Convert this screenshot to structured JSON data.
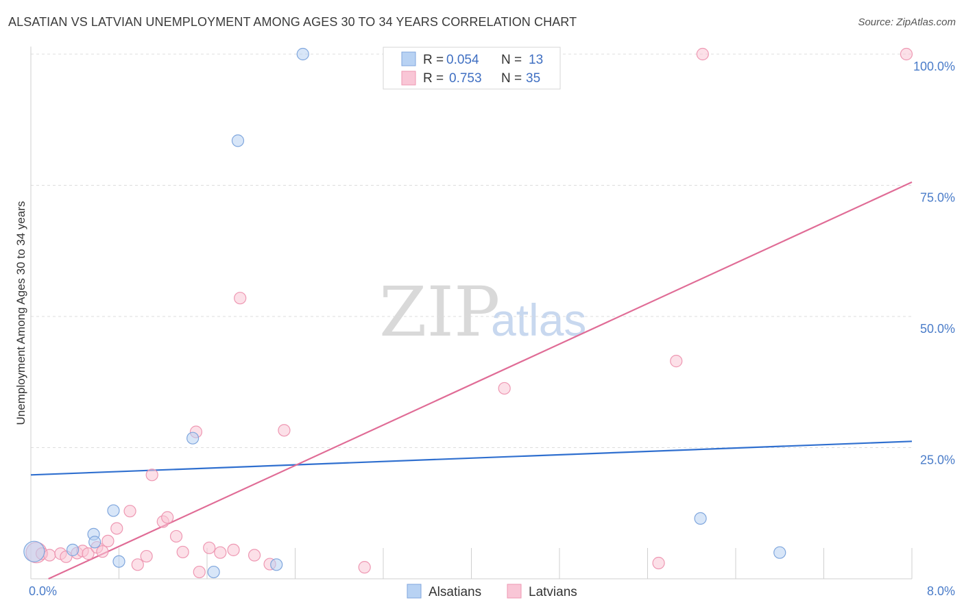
{
  "title": "ALSATIAN VS LATVIAN UNEMPLOYMENT AMONG AGES 30 TO 34 YEARS CORRELATION CHART",
  "source": "Source: ZipAtlas.com",
  "watermark": {
    "part1": "ZIP",
    "part2": "atlas"
  },
  "legend_top": [
    {
      "r_label": "R =",
      "r_value": "0.054",
      "n_label": "N =",
      "n_value": "13",
      "color": "#b8d2f3",
      "stroke": "#7fa6dd"
    },
    {
      "r_label": "R =",
      "r_value": "0.753",
      "n_label": "N =",
      "n_value": "35",
      "color": "#f9c6d6",
      "stroke": "#ee97b2"
    }
  ],
  "legend_bottom": [
    {
      "label": "Alsatians",
      "color": "#b8d2f3",
      "stroke": "#7fa6dd"
    },
    {
      "label": "Latvians",
      "color": "#f9c6d6",
      "stroke": "#ee97b2"
    }
  ],
  "chart_data": {
    "type": "scatter",
    "xlabel": "",
    "ylabel": "Unemployment Among Ages 30 to 34 years",
    "xlim": [
      0,
      8
    ],
    "ylim": [
      0,
      100
    ],
    "x_tick_labels": [
      {
        "value": 0,
        "label": "0.0%"
      },
      {
        "value": 8,
        "label": "8.0%"
      }
    ],
    "y_tick_labels": [
      {
        "value": 100,
        "label": "100.0%"
      },
      {
        "value": 75,
        "label": "75.0%"
      },
      {
        "value": 50,
        "label": "50.0%"
      },
      {
        "value": 25,
        "label": "25.0%"
      }
    ],
    "series": [
      {
        "name": "Alsatians",
        "color": "#b8d2f3",
        "stroke": "#7fa6dd",
        "line_color": "#2f6fcf",
        "trend": {
          "x": [
            0,
            8
          ],
          "y": [
            19.8,
            26.2
          ]
        },
        "points": [
          {
            "x": 0.03,
            "y": 5.2,
            "big": true
          },
          {
            "x": 0.38,
            "y": 5.5
          },
          {
            "x": 0.57,
            "y": 8.5
          },
          {
            "x": 0.75,
            "y": 13.0
          },
          {
            "x": 0.58,
            "y": 7.0
          },
          {
            "x": 0.8,
            "y": 3.3
          },
          {
            "x": 1.47,
            "y": 26.8
          },
          {
            "x": 1.66,
            "y": 1.3
          },
          {
            "x": 1.88,
            "y": 83.5
          },
          {
            "x": 2.23,
            "y": 2.7
          },
          {
            "x": 2.47,
            "y": 100.0
          },
          {
            "x": 6.08,
            "y": 11.5
          },
          {
            "x": 6.8,
            "y": 5.0
          }
        ]
      },
      {
        "name": "Latvians",
        "color": "#f9c6d6",
        "stroke": "#ee97b2",
        "line_color": "#e06c96",
        "trend": {
          "x": [
            0.16,
            8
          ],
          "y": [
            0.0,
            75.6
          ]
        },
        "points": [
          {
            "x": 0.05,
            "y": 5.0,
            "big": true
          },
          {
            "x": 0.1,
            "y": 4.8
          },
          {
            "x": 0.17,
            "y": 4.5
          },
          {
            "x": 0.27,
            "y": 4.8
          },
          {
            "x": 0.32,
            "y": 4.2
          },
          {
            "x": 0.42,
            "y": 4.9
          },
          {
            "x": 0.47,
            "y": 5.3
          },
          {
            "x": 0.52,
            "y": 4.8
          },
          {
            "x": 0.6,
            "y": 6.0
          },
          {
            "x": 0.65,
            "y": 5.2
          },
          {
            "x": 0.7,
            "y": 7.2
          },
          {
            "x": 0.78,
            "y": 9.6
          },
          {
            "x": 0.9,
            "y": 12.9
          },
          {
            "x": 0.97,
            "y": 2.7
          },
          {
            "x": 1.05,
            "y": 4.3
          },
          {
            "x": 1.1,
            "y": 19.8
          },
          {
            "x": 1.2,
            "y": 10.9
          },
          {
            "x": 1.24,
            "y": 11.7
          },
          {
            "x": 1.32,
            "y": 8.1
          },
          {
            "x": 1.38,
            "y": 5.1
          },
          {
            "x": 1.5,
            "y": 28.0
          },
          {
            "x": 1.53,
            "y": 1.3
          },
          {
            "x": 1.62,
            "y": 5.9
          },
          {
            "x": 1.72,
            "y": 5.0
          },
          {
            "x": 1.84,
            "y": 5.5
          },
          {
            "x": 1.9,
            "y": 53.5
          },
          {
            "x": 2.03,
            "y": 4.5
          },
          {
            "x": 2.17,
            "y": 2.8
          },
          {
            "x": 2.3,
            "y": 28.3
          },
          {
            "x": 3.03,
            "y": 2.2
          },
          {
            "x": 4.3,
            "y": 36.3
          },
          {
            "x": 5.7,
            "y": 3.0
          },
          {
            "x": 5.86,
            "y": 41.5
          },
          {
            "x": 6.1,
            "y": 100.0
          },
          {
            "x": 7.95,
            "y": 100.0
          }
        ]
      }
    ]
  }
}
